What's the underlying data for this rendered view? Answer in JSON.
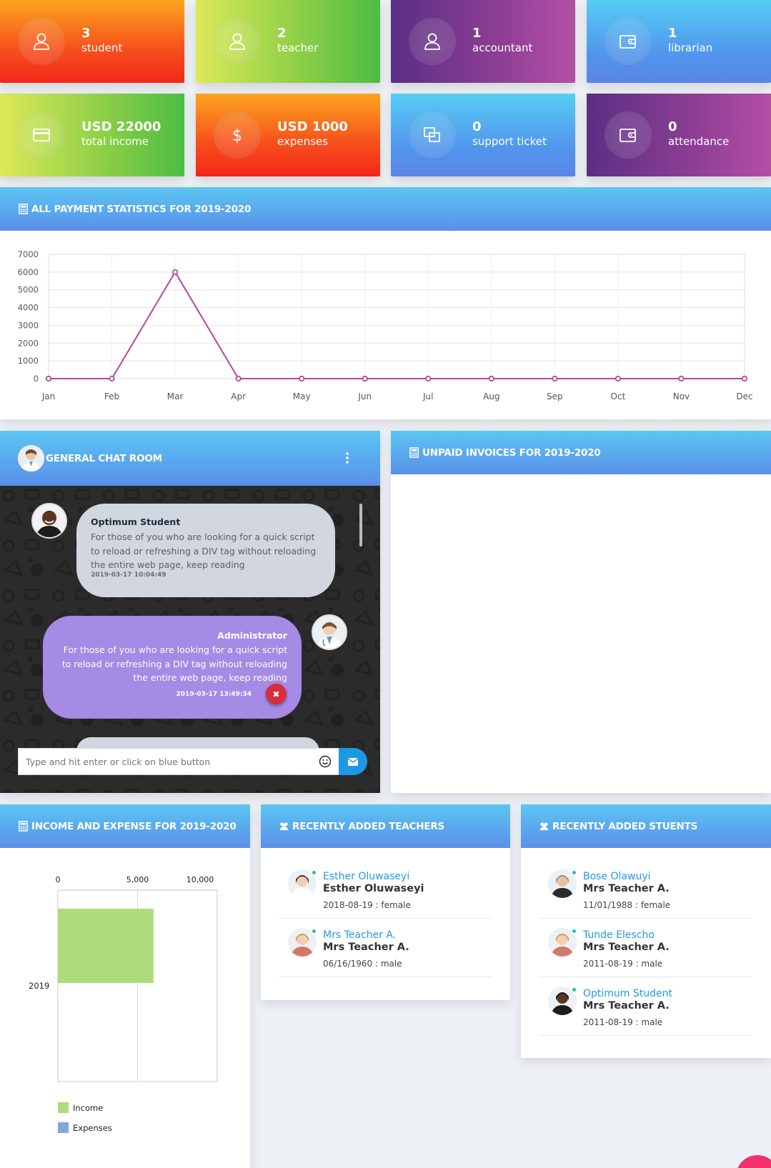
{
  "stats": [
    {
      "value": "3",
      "label": "student",
      "icon": "user-icon",
      "theme": "orange"
    },
    {
      "value": "2",
      "label": "teacher",
      "icon": "user-icon",
      "theme": "green"
    },
    {
      "value": "1",
      "label": "accountant",
      "icon": "user-icon",
      "theme": "purple"
    },
    {
      "value": "1",
      "label": "librarian",
      "icon": "wallet-icon",
      "theme": "blue"
    },
    {
      "value": "USD 22000",
      "label": "total income",
      "icon": "credit-card-icon",
      "theme": "green"
    },
    {
      "value": "USD 1000",
      "label": "expenses",
      "icon": "dollar-icon",
      "theme": "orange"
    },
    {
      "value": "0",
      "label": "support ticket",
      "icon": "copy-icon",
      "theme": "blue"
    },
    {
      "value": "0",
      "label": "attendance",
      "icon": "wallet-icon",
      "theme": "purple"
    }
  ],
  "payment_stats": {
    "title": "ALL PAYMENT STATISTICS FOR 2019-2020"
  },
  "chat": {
    "title": "GENERAL CHAT ROOM",
    "messages": [
      {
        "author": "Optimum Student",
        "text": "For those of you who are looking for a quick script to reload or refreshing a DIV tag without reloading the entire web page, keep reading",
        "time": "2019-03-17 10:04:49"
      },
      {
        "author": "Administrator",
        "text": "For those of you who are looking for a quick script to reload or refreshing a DIV tag without reloading the entire web page, keep reading",
        "time": "2019-03-17 13:49:34"
      }
    ],
    "input_placeholder": "Type and hit enter or click on blue button",
    "delete_glyph": "✖"
  },
  "unpaid": {
    "title": "UNPAID INVOICES FOR 2019-2020"
  },
  "income_expense": {
    "title": "INCOME AND EXPENSE FOR 2019-2020",
    "legend": [
      "Income",
      "Expenses"
    ],
    "category_label": "2019",
    "ticks": [
      "0",
      "5,000",
      "10,000"
    ]
  },
  "teachers": {
    "title": "RECENTLY ADDED TEACHERS",
    "items": [
      {
        "name": "Esther Oluwaseyi",
        "sub": "Esther Oluwaseyi",
        "meta": "2018-08-19 :  female"
      },
      {
        "name": "Mrs Teacher A.",
        "sub": "Mrs Teacher A.",
        "meta": "06/16/1960 :  male"
      }
    ]
  },
  "students": {
    "title": "RECENTLY ADDED STUENTS",
    "items": [
      {
        "name": "Bose Olawuyi",
        "sub": "Mrs Teacher A.",
        "meta": "11/01/1988 :  female"
      },
      {
        "name": "Tunde Elescho",
        "sub": "Mrs Teacher A.",
        "meta": "2011-08-19 :  male"
      },
      {
        "name": "Optimum Student",
        "sub": "Mrs Teacher A.",
        "meta": "2011-08-19 :  male"
      }
    ]
  },
  "chart_data": [
    {
      "type": "line",
      "title": "",
      "categories": [
        "Jan",
        "Feb",
        "Mar",
        "Apr",
        "May",
        "Jun",
        "Jul",
        "Aug",
        "Sep",
        "Oct",
        "Nov",
        "Dec"
      ],
      "values": [
        0,
        0,
        6000,
        0,
        0,
        0,
        0,
        0,
        0,
        0,
        0,
        0
      ],
      "ylim": [
        0,
        7000
      ],
      "yticks": [
        0,
        1000,
        2000,
        3000,
        4000,
        5000,
        6000,
        7000
      ],
      "grid": true,
      "color": "#b5479c"
    },
    {
      "type": "bar",
      "orientation": "horizontal",
      "categories": [
        "2019"
      ],
      "series": [
        {
          "name": "Income",
          "values": [
            6000
          ],
          "color": "#aedb7c"
        },
        {
          "name": "Expenses",
          "values": [
            0
          ],
          "color": "#7fa8dc"
        }
      ],
      "xlim": [
        0,
        10000
      ]
    }
  ]
}
